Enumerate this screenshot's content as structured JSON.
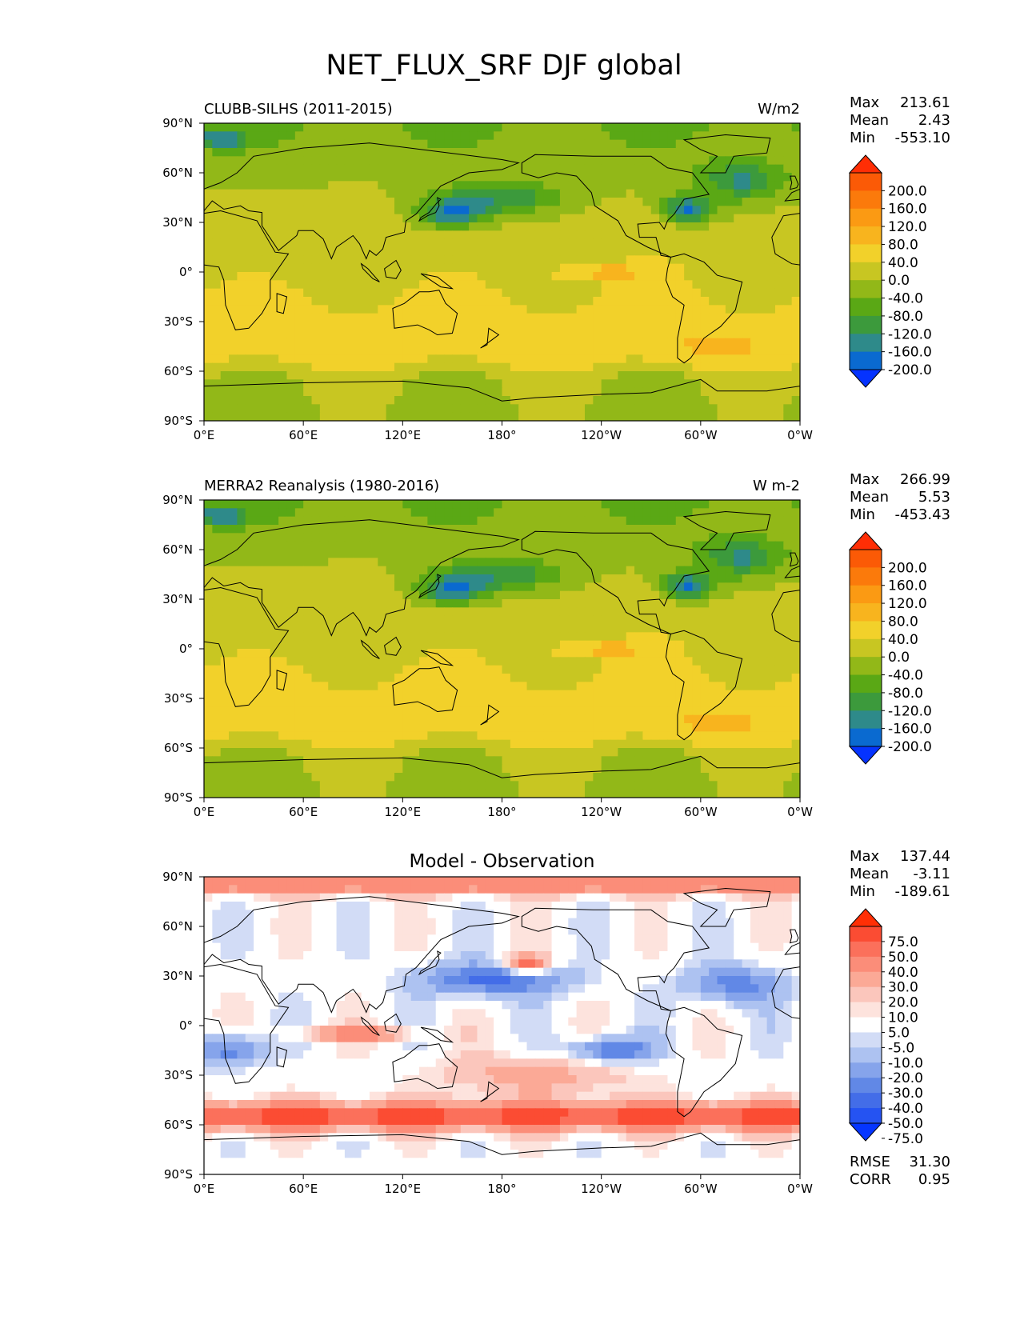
{
  "title": "NET_FLUX_SRF DJF global",
  "colors": {
    "main_levels": [
      "#0533ff",
      "#0a6ad0",
      "#2e8a8a",
      "#3c9a3c",
      "#5aa815",
      "#92b818",
      "#c8c622",
      "#f2d12a",
      "#f8b41e",
      "#fb9a13",
      "#fb7a0b",
      "#fb5a06",
      "#ff2e05"
    ],
    "diff_levels": [
      "#0535ff",
      "#2553f2",
      "#436de8",
      "#6188e6",
      "#86a4eb",
      "#adc2f1",
      "#d2dcf6",
      "#ffffff",
      "#fde3dd",
      "#fbc6bc",
      "#fba996",
      "#fb8d79",
      "#fb705b",
      "#fb4c33",
      "#ff2f05"
    ],
    "land_outline": "#000000"
  },
  "panels": [
    {
      "left_title": "CLUBB-SILHS (2011-2015)",
      "center_title": "",
      "units": "W/m2",
      "stats": [
        {
          "label": "Max",
          "value": "213.61"
        },
        {
          "label": "Mean",
          "value": "2.43"
        },
        {
          "label": "Min",
          "value": "-553.10"
        }
      ],
      "colorbar_ticks": [
        "200.0",
        "160.0",
        "120.0",
        "80.0",
        "40.0",
        "0.0",
        "-40.0",
        "-80.0",
        "-120.0",
        "-160.0",
        "-200.0"
      ],
      "scheme": "main",
      "footer": []
    },
    {
      "left_title": "MERRA2 Reanalysis (1980-2016)",
      "center_title": "",
      "units": "W m-2",
      "stats": [
        {
          "label": "Max",
          "value": "266.99"
        },
        {
          "label": "Mean",
          "value": "5.53"
        },
        {
          "label": "Min",
          "value": "-453.43"
        }
      ],
      "colorbar_ticks": [
        "200.0",
        "160.0",
        "120.0",
        "80.0",
        "40.0",
        "0.0",
        "-40.0",
        "-80.0",
        "-120.0",
        "-160.0",
        "-200.0"
      ],
      "scheme": "main",
      "footer": []
    },
    {
      "left_title": "",
      "center_title": "Model - Observation",
      "units": "",
      "stats": [
        {
          "label": "Max",
          "value": "137.44"
        },
        {
          "label": "Mean",
          "value": "-3.11"
        },
        {
          "label": "Min",
          "value": "-189.61"
        }
      ],
      "colorbar_ticks": [
        "75.0",
        "50.0",
        "40.0",
        "30.0",
        "20.0",
        "10.0",
        "5.0",
        "-5.0",
        "-10.0",
        "-20.0",
        "-30.0",
        "-40.0",
        "-50.0",
        "-75.0"
      ],
      "scheme": "diff",
      "footer": [
        {
          "label": "RMSE",
          "value": "31.30"
        },
        {
          "label": "CORR",
          "value": "0.95"
        }
      ]
    }
  ],
  "chart_data": [
    {
      "type": "heatmap",
      "title": "CLUBB-SILHS (2011-2015)",
      "units": "W/m2",
      "x_ticks": [
        "0°E",
        "60°E",
        "120°E",
        "180°",
        "120°W",
        "60°W",
        "0°W"
      ],
      "y_ticks": [
        "90°N",
        "60°N",
        "30°N",
        "0°",
        "30°S",
        "60°S",
        "90°S"
      ],
      "xlim": [
        0,
        360
      ],
      "ylim": [
        -90,
        90
      ],
      "levels": [
        -200,
        -160,
        -120,
        -80,
        -40,
        0,
        40,
        80,
        120,
        160,
        200
      ],
      "max": 213.61,
      "mean": 2.43,
      "min": -553.1
    },
    {
      "type": "heatmap",
      "title": "MERRA2 Reanalysis (1980-2016)",
      "units": "W m-2",
      "x_ticks": [
        "0°E",
        "60°E",
        "120°E",
        "180°",
        "120°W",
        "60°W",
        "0°W"
      ],
      "y_ticks": [
        "90°N",
        "60°N",
        "30°N",
        "0°",
        "30°S",
        "60°S",
        "90°S"
      ],
      "xlim": [
        0,
        360
      ],
      "ylim": [
        -90,
        90
      ],
      "levels": [
        -200,
        -160,
        -120,
        -80,
        -40,
        0,
        40,
        80,
        120,
        160,
        200
      ],
      "max": 266.99,
      "mean": 5.53,
      "min": -453.43
    },
    {
      "type": "heatmap",
      "title": "Model - Observation",
      "units": "",
      "x_ticks": [
        "0°E",
        "60°E",
        "120°E",
        "180°",
        "120°W",
        "60°W",
        "0°W"
      ],
      "y_ticks": [
        "90°N",
        "60°N",
        "30°N",
        "0°",
        "30°S",
        "60°S",
        "90°S"
      ],
      "xlim": [
        0,
        360
      ],
      "ylim": [
        -90,
        90
      ],
      "levels": [
        -75,
        -50,
        -40,
        -30,
        -20,
        -10,
        -5,
        5,
        10,
        20,
        30,
        40,
        50,
        75
      ],
      "max": 137.44,
      "mean": -3.11,
      "min": -189.61,
      "rmse": 31.3,
      "corr": 0.95
    }
  ]
}
